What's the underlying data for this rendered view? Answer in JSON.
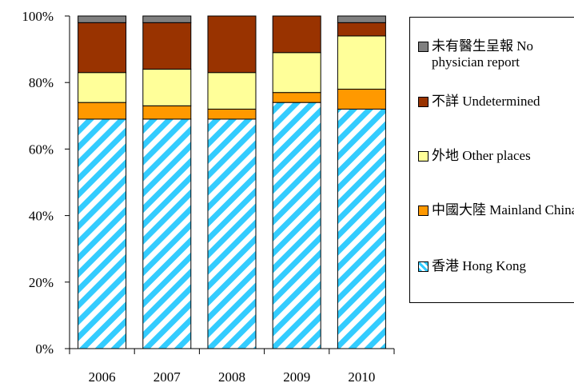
{
  "chart_data": {
    "type": "bar",
    "stacked": true,
    "categories": [
      "2006",
      "2007",
      "2008",
      "2009",
      "2010"
    ],
    "series": [
      {
        "name": "香港 Hong Kong",
        "values": [
          69,
          69,
          69,
          74,
          72
        ],
        "color": "#33ccff",
        "pattern": "diagonal-stripes"
      },
      {
        "name": "中國大陸 Mainland China",
        "values": [
          5,
          4,
          3,
          3,
          6
        ],
        "color": "#ff9900"
      },
      {
        "name": "外地 Other places",
        "values": [
          9,
          11,
          11,
          12,
          16
        ],
        "color": "#ffff99"
      },
      {
        "name": "不詳 Undetermined",
        "values": [
          15,
          14,
          17,
          11,
          4
        ],
        "color": "#993300"
      },
      {
        "name": "未有醫生呈報 No physician report",
        "values": [
          2,
          2,
          0,
          0,
          2
        ],
        "color": "#808080"
      }
    ],
    "ylim": [
      0,
      100
    ],
    "yticks": [
      "0%",
      "20%",
      "40%",
      "60%",
      "80%",
      "100%"
    ],
    "grid": false,
    "legend_position": "right"
  },
  "legend": {
    "items": [
      {
        "label": "未有醫生呈報 No physician report",
        "color": "#808080"
      },
      {
        "label": "不詳 Undetermined",
        "color": "#993300"
      },
      {
        "label": "外地 Other places",
        "color": "#ffff99"
      },
      {
        "label": "中國大陸 Mainland China",
        "color": "#ff9900"
      },
      {
        "label": "香港 Hong Kong",
        "color": "#33ccff",
        "pattern": "diagonal-stripes"
      }
    ]
  }
}
